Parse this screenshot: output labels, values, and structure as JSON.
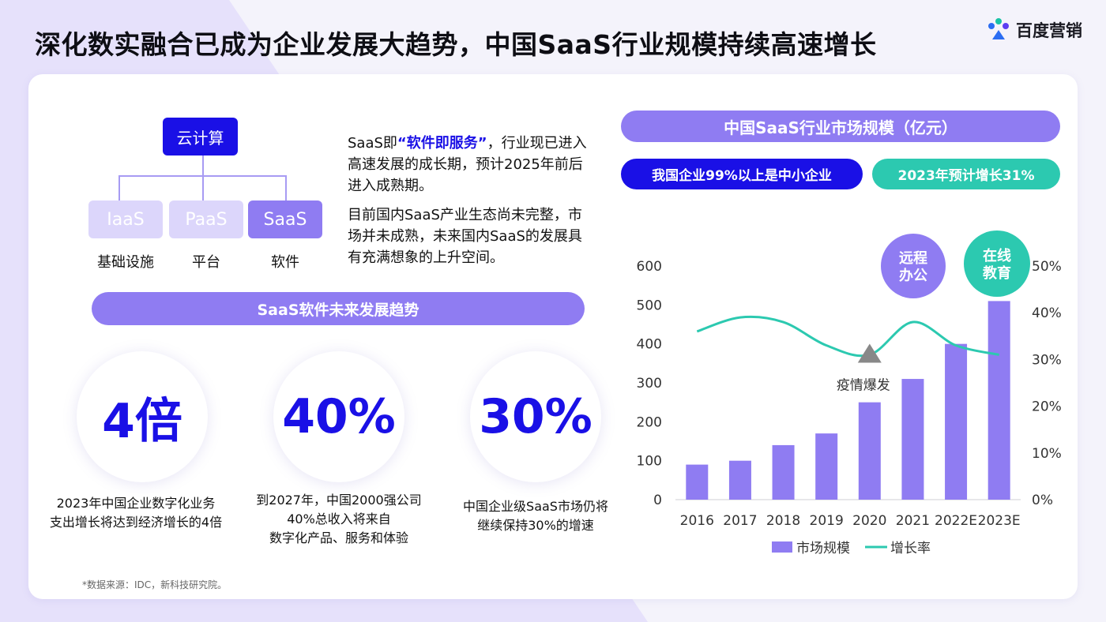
{
  "title": "深化数实融合已成为企业发展大趋势，中国SaaS行业规模持续高速增长",
  "brand": "百度营销",
  "tree": {
    "root": "云计算",
    "nodes": [
      {
        "label": "IaaS",
        "caption": "基础设施"
      },
      {
        "label": "PaaS",
        "caption": "平台"
      },
      {
        "label": "SaaS",
        "caption": "软件"
      }
    ]
  },
  "desc": {
    "p1_pre": "SaaS即",
    "p1_hl": "“软件即服务”",
    "p1_post": "，行业现已进入高速发展的成长期，预计2025年前后进入成熟期。",
    "p2": "目前国内SaaS产业生态尚未完整，市场并未成熟，未来国内SaaS的发展具有充满想象的上升空间。"
  },
  "trend_banner": "SaaS软件未来发展趋势",
  "stats": [
    {
      "value": "4倍",
      "text": "2023年中国企业数字化业务\n支出增长将达到经济增长的4倍"
    },
    {
      "value": "40%",
      "text": "到2027年，中国2000强公司\n40%总收入将来自\n数字化产品、服务和体验"
    },
    {
      "value": "30%",
      "text": "中国企业级SaaS市场仍将\n继续保持30%的增速"
    }
  ],
  "source": "*数据来源：IDC，新科技研究院。",
  "right": {
    "chart_banner": "中国SaaS行业市场规模（亿元）",
    "tag_left": "我国企业99%以上是中小企业",
    "tag_right": "2023年预计增长31%",
    "bubble_1": "远程\n办公",
    "bubble_2": "在线\n教育",
    "event_label": "疫情爆发"
  },
  "colors": {
    "primary": "#1a10e6",
    "purple": "#8f7cf2",
    "teal": "#2cc9b0",
    "light_purple": "#dcd6fb"
  },
  "chart_data": {
    "type": "bar",
    "categories": [
      "2016",
      "2017",
      "2018",
      "2019",
      "2020",
      "2021",
      "2022E",
      "2023E"
    ],
    "series": [
      {
        "name": "市场规模",
        "type": "bar",
        "axis": "left",
        "values": [
          90,
          100,
          140,
          170,
          250,
          310,
          400,
          510
        ]
      },
      {
        "name": "增长率",
        "type": "line",
        "axis": "right",
        "values": [
          36,
          39,
          38,
          33,
          31,
          38,
          33,
          31
        ]
      }
    ],
    "ylim": [
      0,
      600
    ],
    "yticks": [
      0,
      100,
      200,
      300,
      400,
      500,
      600
    ],
    "y2lim": [
      0,
      50
    ],
    "y2ticks": [
      "0%",
      "10%",
      "20%",
      "30%",
      "40%",
      "50%"
    ],
    "legend_position": "bottom"
  }
}
